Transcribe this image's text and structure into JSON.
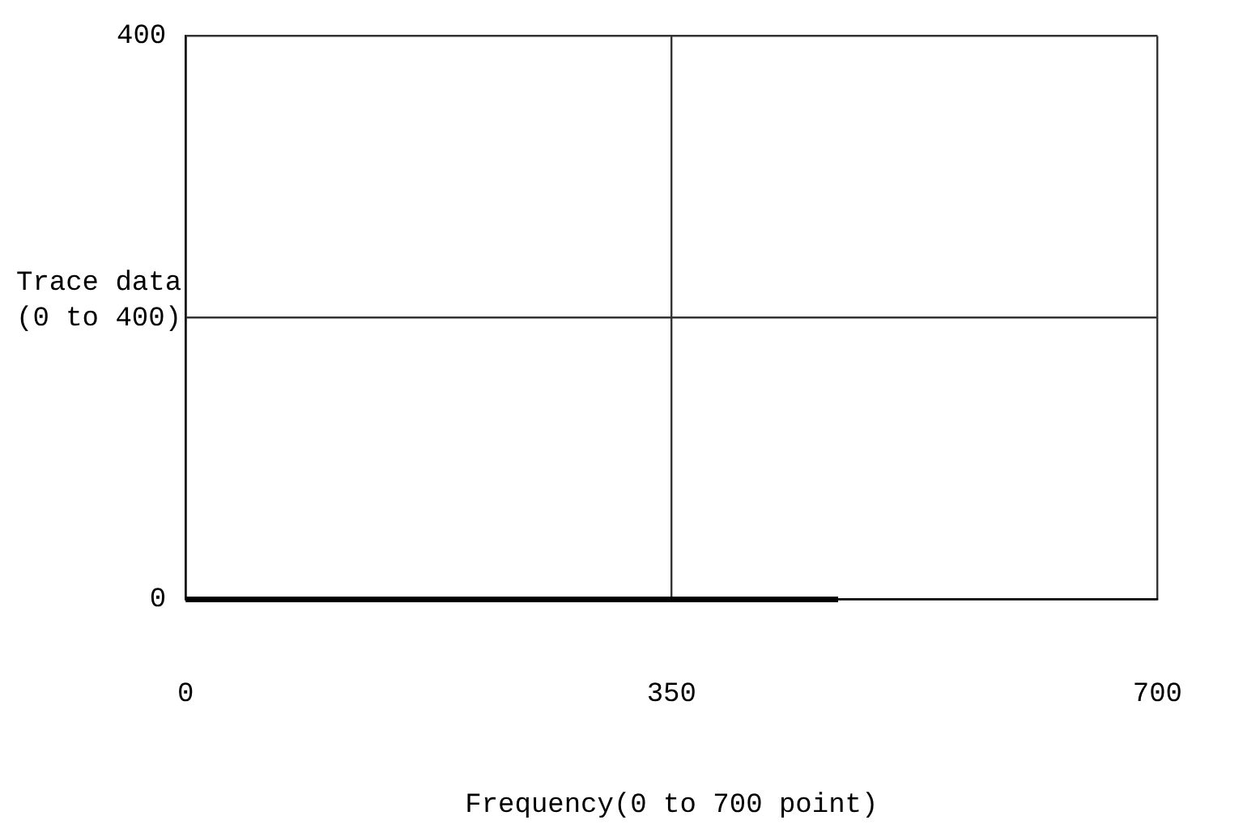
{
  "chart_data": {
    "type": "line",
    "xlabel": "Frequency(0 to 700 point)",
    "ylabel": "Trace data\n(0 to 400)",
    "x": [
      0,
      470
    ],
    "series": [
      {
        "color": "#000000",
        "values": [
          0,
          0
        ]
      }
    ],
    "xlim": [
      0,
      700
    ],
    "xticks": [
      0,
      350,
      700
    ],
    "ylim": [
      0,
      400
    ],
    "yticks": [
      0,
      {
        "value": 200,
        "label": null
      },
      400
    ],
    "grid": true,
    "legend": false,
    "marker": "none",
    "line_style": "solid"
  }
}
